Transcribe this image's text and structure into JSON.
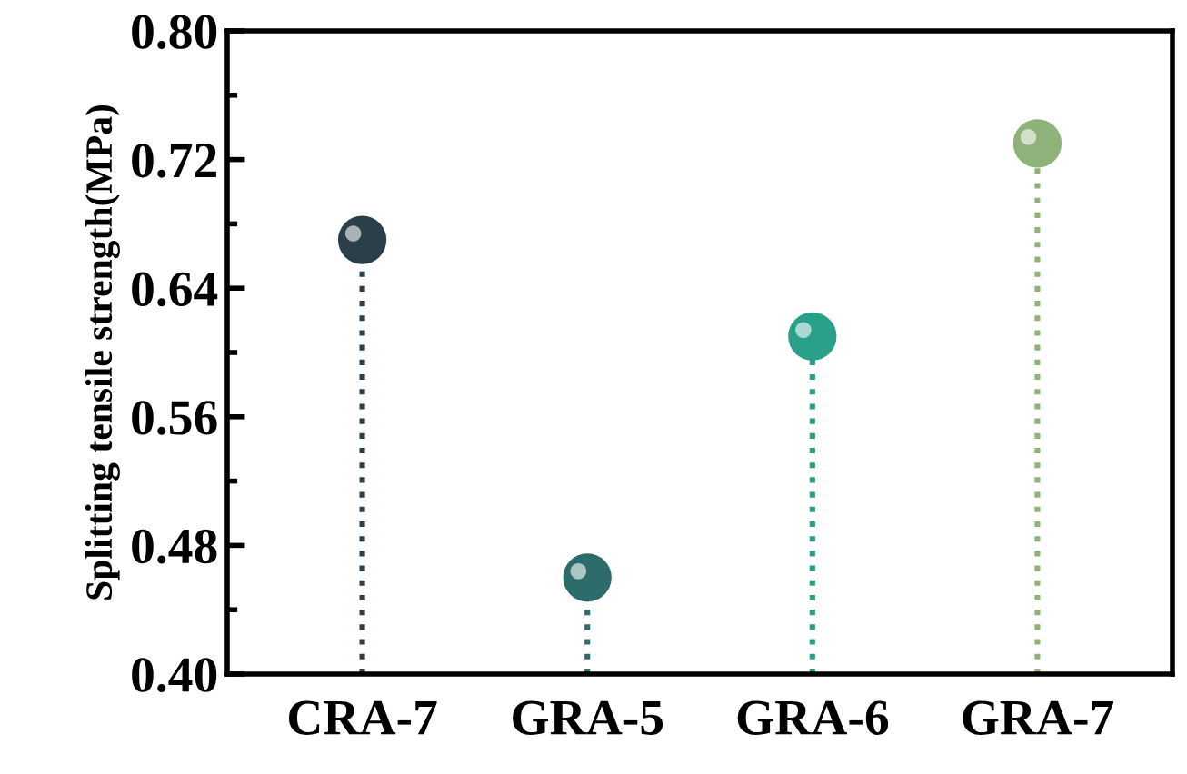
{
  "chart_data": {
    "type": "lollipop",
    "ylabel": "Splitting tensile strength(MPa)",
    "categories": [
      "CRA-7",
      "GRA-5",
      "GRA-6",
      "GRA-7"
    ],
    "values": [
      0.67,
      0.46,
      0.61,
      0.73
    ],
    "colors": [
      "#2b3f4a",
      "#2e6b6b",
      "#2aa08a",
      "#8fb27a"
    ],
    "ylim": [
      0.4,
      0.8
    ],
    "yticks": [
      {
        "value": 0.4,
        "label": "0.40"
      },
      0.48,
      0.56,
      0.64,
      0.72,
      {
        "value": 0.8,
        "label": "0.80"
      }
    ],
    "line_style": "dotted",
    "marker": "circle",
    "grid": false,
    "legend": false
  }
}
